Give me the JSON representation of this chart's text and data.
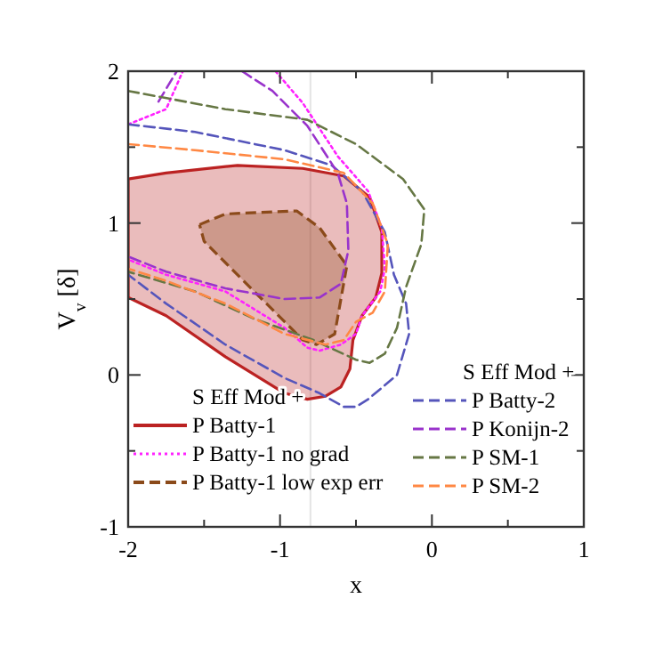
{
  "chart_data": {
    "type": "line",
    "xlabel": "x",
    "ylabel": "V$_{v}$ [δ]",
    "xlim": [
      -2,
      1
    ],
    "ylim": [
      -1,
      2
    ],
    "xticks": [
      -2,
      {
        "value": -1.5,
        "label": null
      },
      -1,
      {
        "value": -0.5,
        "label": null
      },
      0,
      {
        "value": 0.5,
        "label": null
      },
      1
    ],
    "yticks": [
      -1,
      {
        "value": -0.5,
        "label": null
      },
      0,
      {
        "value": 0.5,
        "label": null
      },
      1,
      {
        "value": 1.5,
        "label": null
      },
      2
    ],
    "legend": "bottom",
    "annotations": [
      "S Eff Mod +",
      "S Eff Mod +"
    ],
    "ref_lines": [
      {
        "axis": "x",
        "value": -0.8,
        "color": "#e4e4e4"
      }
    ],
    "series": [
      {
        "name": "P Batty-1",
        "type": "area",
        "color": "#bb2222",
        "line_style": "solid",
        "x": [
          -2,
          -1.75,
          -1.28,
          -0.85,
          -0.58,
          -0.41,
          -0.33,
          -0.33,
          -0.37,
          -0.46,
          -0.52,
          -0.54,
          -0.6,
          -0.7,
          -0.82,
          -0.97,
          -1.36,
          -1.75,
          -2,
          -2
        ],
        "values": [
          1.29,
          1.33,
          1.38,
          1.36,
          1.31,
          1.17,
          0.94,
          0.67,
          0.51,
          0.39,
          0.23,
          0.04,
          -0.08,
          -0.14,
          -0.16,
          -0.12,
          0.12,
          0.39,
          0.51,
          1.29
        ]
      },
      {
        "name": "P Batty-1 no grad",
        "color": "#ff22ff",
        "line_style": "dotted",
        "x": [
          -1.03,
          -0.85,
          -0.62,
          -0.42,
          -0.33,
          -0.31,
          -0.34,
          -0.46,
          -0.5,
          -0.6,
          -0.74,
          -0.82,
          -0.97,
          -1.36,
          -1.75,
          -2,
          null,
          -2,
          -1.75,
          -1.64
        ],
        "values": [
          2,
          1.79,
          1.44,
          1.21,
          0.97,
          0.7,
          0.55,
          0.39,
          0.27,
          0.2,
          0.16,
          0.18,
          0.31,
          0.55,
          0.66,
          0.76,
          null,
          1.65,
          1.75,
          2
        ]
      },
      {
        "name": "P Batty-1 low exp err",
        "type": "area",
        "color": "#8b4a1a",
        "line_style": "dashed",
        "x": [
          -1.53,
          -1.36,
          -0.89,
          -0.74,
          -0.56,
          -0.64,
          -0.76,
          -0.85,
          -1.17,
          -1.5,
          -1.53
        ],
        "values": [
          0.99,
          1.06,
          1.08,
          0.97,
          0.72,
          0.27,
          0.2,
          0.23,
          0.55,
          0.88,
          0.99
        ]
      },
      {
        "name": "P Batty-2",
        "color": "#5555bb",
        "line_style": "dashed",
        "x": [
          -2,
          -1.56,
          -0.97,
          -0.66,
          -0.46,
          -0.31,
          -0.25,
          -0.17,
          -0.15,
          -0.23,
          -0.42,
          -0.5,
          -0.58,
          -0.74,
          -0.97,
          -1.36,
          -1.75,
          -2
        ],
        "values": [
          1.65,
          1.6,
          1.48,
          1.38,
          1.21,
          0.94,
          0.66,
          0.47,
          0.27,
          0,
          -0.16,
          -0.21,
          -0.21,
          -0.12,
          -0.02,
          0.2,
          0.47,
          0.66
        ]
      },
      {
        "name": "P Konijn-2",
        "color": "#9933cc",
        "line_style": "dashed",
        "x": [
          -1.25,
          -1.05,
          -0.82,
          -0.62,
          -0.56,
          -0.55,
          -0.6,
          -0.74,
          -0.97,
          -1.36,
          -1.75,
          -2,
          null,
          -1.8,
          -1.68
        ],
        "values": [
          2,
          1.87,
          1.64,
          1.33,
          1.13,
          0.82,
          0.6,
          0.51,
          0.5,
          0.57,
          0.68,
          0.78,
          null,
          1.8,
          2
        ]
      },
      {
        "name": "P SM-1",
        "color": "#667744",
        "line_style": "dashed",
        "x": [
          -2,
          -1.36,
          -0.82,
          -0.5,
          -0.19,
          -0.05,
          -0.07,
          -0.17,
          -0.23,
          -0.31,
          -0.41,
          -0.5,
          -0.78,
          -1.17,
          -1.56,
          -2
        ],
        "values": [
          1.87,
          1.75,
          1.68,
          1.52,
          1.29,
          1.09,
          0.86,
          0.58,
          0.31,
          0.14,
          0.08,
          0.1,
          0.23,
          0.37,
          0.55,
          0.68
        ]
      },
      {
        "name": "P SM-2",
        "color": "#ff8844",
        "line_style": "dashed",
        "x": [
          -2,
          -1.56,
          -0.97,
          -0.58,
          -0.39,
          -0.29,
          -0.31,
          -0.39,
          -0.5,
          -0.58,
          -0.7,
          -0.97,
          -1.36,
          -1.75,
          -2
        ],
        "values": [
          1.52,
          1.48,
          1.42,
          1.33,
          1.13,
          0.86,
          0.55,
          0.41,
          0.35,
          0.23,
          0.2,
          0.27,
          0.47,
          0.62,
          0.7
        ]
      }
    ]
  }
}
